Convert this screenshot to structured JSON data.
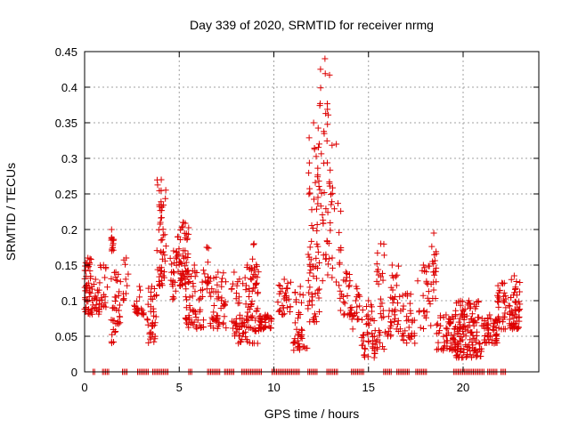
{
  "chart_data": {
    "type": "scatter",
    "title": "Day 339 of 2020, SRMTID for receiver nrmg",
    "xlabel": "GPS time / hours",
    "ylabel": "SRMTID / TECUs",
    "xlim": [
      0,
      24
    ],
    "ylim": [
      0,
      0.45
    ],
    "x_ticks": [
      0,
      5,
      10,
      15,
      20
    ],
    "x_tick_labels": [
      "0",
      "5",
      "10",
      "15",
      "20"
    ],
    "y_ticks": [
      0,
      0.05,
      0.1,
      0.15,
      0.2,
      0.25,
      0.3,
      0.35,
      0.4,
      0.45
    ],
    "y_tick_labels": [
      "0",
      "0.05",
      "0.1",
      "0.15",
      "0.2",
      "0.25",
      "0.3",
      "0.35",
      "0.4",
      "0.45"
    ],
    "grid": true,
    "marker": "plus",
    "color": "#dd0000",
    "series": [
      {
        "name": "SRMTID",
        "clusters": [
          {
            "x_start": 0.0,
            "x_end": 0.35,
            "y_min": 0.08,
            "y_max": 0.16,
            "n": 45
          },
          {
            "x_start": 0.35,
            "x_end": 0.8,
            "y_min": 0.08,
            "y_max": 0.13,
            "n": 25
          },
          {
            "x_start": 0.8,
            "x_end": 1.2,
            "y_min": 0.09,
            "y_max": 0.15,
            "n": 15
          },
          {
            "x_start": 1.3,
            "x_end": 1.55,
            "y_min": 0.17,
            "y_max": 0.2,
            "n": 12
          },
          {
            "x_start": 1.4,
            "x_end": 1.9,
            "y_min": 0.04,
            "y_max": 0.14,
            "n": 35
          },
          {
            "x_start": 2.0,
            "x_end": 2.4,
            "y_min": 0.1,
            "y_max": 0.16,
            "n": 10
          },
          {
            "x_start": 2.6,
            "x_end": 3.2,
            "y_min": 0.08,
            "y_max": 0.12,
            "n": 20
          },
          {
            "x_start": 3.3,
            "x_end": 3.8,
            "y_min": 0.04,
            "y_max": 0.12,
            "n": 35
          },
          {
            "x_start": 3.8,
            "x_end": 4.3,
            "y_min": 0.12,
            "y_max": 0.27,
            "n": 50
          },
          {
            "x_start": 4.5,
            "x_end": 4.9,
            "y_min": 0.1,
            "y_max": 0.17,
            "n": 20
          },
          {
            "x_start": 4.9,
            "x_end": 5.5,
            "y_min": 0.12,
            "y_max": 0.21,
            "n": 55
          },
          {
            "x_start": 5.3,
            "x_end": 6.3,
            "y_min": 0.06,
            "y_max": 0.15,
            "n": 60
          },
          {
            "x_start": 6.3,
            "x_end": 6.6,
            "y_min": 0.11,
            "y_max": 0.175,
            "n": 12
          },
          {
            "x_start": 6.6,
            "x_end": 7.5,
            "y_min": 0.06,
            "y_max": 0.14,
            "n": 50
          },
          {
            "x_start": 7.7,
            "x_end": 8.1,
            "y_min": 0.05,
            "y_max": 0.14,
            "n": 15
          },
          {
            "x_start": 8.0,
            "x_end": 9.2,
            "y_min": 0.04,
            "y_max": 0.15,
            "n": 90
          },
          {
            "x_start": 8.8,
            "x_end": 9.1,
            "y_min": 0.12,
            "y_max": 0.18,
            "n": 10
          },
          {
            "x_start": 9.2,
            "x_end": 9.9,
            "y_min": 0.06,
            "y_max": 0.08,
            "n": 40
          },
          {
            "x_start": 10.2,
            "x_end": 10.9,
            "y_min": 0.08,
            "y_max": 0.13,
            "n": 30
          },
          {
            "x_start": 11.0,
            "x_end": 11.8,
            "y_min": 0.03,
            "y_max": 0.12,
            "n": 40
          },
          {
            "x_start": 11.8,
            "x_end": 12.4,
            "y_min": 0.07,
            "y_max": 0.35,
            "n": 70
          },
          {
            "x_start": 12.4,
            "x_end": 13.0,
            "y_min": 0.12,
            "y_max": 0.44,
            "n": 45
          },
          {
            "x_start": 13.0,
            "x_end": 13.6,
            "y_min": 0.12,
            "y_max": 0.32,
            "n": 20
          },
          {
            "x_start": 13.5,
            "x_end": 14.1,
            "y_min": 0.08,
            "y_max": 0.14,
            "n": 25
          },
          {
            "x_start": 14.1,
            "x_end": 14.6,
            "y_min": 0.06,
            "y_max": 0.12,
            "n": 20
          },
          {
            "x_start": 14.6,
            "x_end": 15.4,
            "y_min": 0.02,
            "y_max": 0.1,
            "n": 45
          },
          {
            "x_start": 15.4,
            "x_end": 15.9,
            "y_min": 0.03,
            "y_max": 0.18,
            "n": 30
          },
          {
            "x_start": 15.9,
            "x_end": 16.6,
            "y_min": 0.05,
            "y_max": 0.15,
            "n": 35
          },
          {
            "x_start": 16.6,
            "x_end": 17.5,
            "y_min": 0.04,
            "y_max": 0.11,
            "n": 35
          },
          {
            "x_start": 17.5,
            "x_end": 18.3,
            "y_min": 0.06,
            "y_max": 0.15,
            "n": 25
          },
          {
            "x_start": 18.3,
            "x_end": 18.6,
            "y_min": 0.1,
            "y_max": 0.195,
            "n": 18
          },
          {
            "x_start": 18.6,
            "x_end": 19.6,
            "y_min": 0.03,
            "y_max": 0.08,
            "n": 60
          },
          {
            "x_start": 19.6,
            "x_end": 21.0,
            "y_min": 0.02,
            "y_max": 0.1,
            "n": 130
          },
          {
            "x_start": 21.0,
            "x_end": 21.8,
            "y_min": 0.04,
            "y_max": 0.08,
            "n": 50
          },
          {
            "x_start": 21.8,
            "x_end": 22.3,
            "y_min": 0.06,
            "y_max": 0.125,
            "n": 35
          },
          {
            "x_start": 22.4,
            "x_end": 23.0,
            "y_min": 0.06,
            "y_max": 0.135,
            "n": 55
          }
        ],
        "zero_segments": [
          [
            0.45,
            0.6
          ],
          [
            0.95,
            1.3
          ],
          [
            2.0,
            2.3
          ],
          [
            2.8,
            3.4
          ],
          [
            3.6,
            4.4
          ],
          [
            5.5,
            5.7
          ],
          [
            6.5,
            7.2
          ],
          [
            7.4,
            7.9
          ],
          [
            8.3,
            9.4
          ],
          [
            9.9,
            11.4
          ],
          [
            11.8,
            12.3
          ],
          [
            12.8,
            13.4
          ],
          [
            14.1,
            14.8
          ],
          [
            15.8,
            16.2
          ],
          [
            16.5,
            17.2
          ],
          [
            17.5,
            18.1
          ],
          [
            19.5,
            21.1
          ],
          [
            21.3,
            21.8
          ],
          [
            22.0,
            22.3
          ]
        ]
      }
    ]
  }
}
